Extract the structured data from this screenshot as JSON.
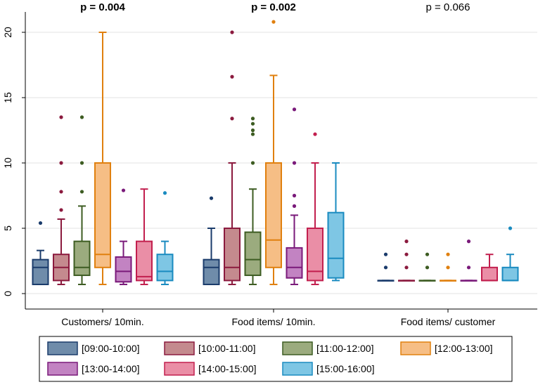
{
  "chart_data": {
    "type": "box",
    "ylim": [
      0,
      21
    ],
    "yticks": [
      0,
      5,
      10,
      15,
      20
    ],
    "ytick_labels": [
      "0",
      "5",
      "10",
      "15",
      "20"
    ],
    "grid": true,
    "groups": [
      {
        "label": "Customers/ 10min.",
        "p_label": "p = 0.004",
        "p_bold": true
      },
      {
        "label": "Food items/ 10min.",
        "p_label": "p = 0.002",
        "p_bold": true
      },
      {
        "label": "Food items/ customer",
        "p_label": "p = 0.066",
        "p_bold": false
      }
    ],
    "series": [
      {
        "name": "[09:00-10:00]",
        "fill": "#6f8caa",
        "stroke": "#1a3b6b",
        "boxes": [
          {
            "q1": 0.7,
            "median": 2.0,
            "q3": 2.6,
            "lo": 0.7,
            "hi": 3.3,
            "outliers": [
              5.4
            ]
          },
          {
            "q1": 0.7,
            "median": 2.0,
            "q3": 2.6,
            "lo": 0.7,
            "hi": 5.0,
            "outliers": [
              7.3
            ]
          },
          {
            "q1": 1.0,
            "median": 1.0,
            "q3": 1.0,
            "lo": 1.0,
            "hi": 1.0,
            "outliers": [
              2.0,
              3.0
            ]
          }
        ]
      },
      {
        "name": "[10:00-11:00]",
        "fill": "#c48a8e",
        "stroke": "#8b1a3e",
        "boxes": [
          {
            "q1": 1.0,
            "median": 2.0,
            "q3": 3.0,
            "lo": 0.7,
            "hi": 5.7,
            "outliers": [
              6.4,
              7.8,
              10.0,
              13.5
            ]
          },
          {
            "q1": 1.0,
            "median": 2.0,
            "q3": 5.0,
            "lo": 0.7,
            "hi": 10.0,
            "outliers": [
              13.4,
              16.6,
              20.0
            ]
          },
          {
            "q1": 1.0,
            "median": 1.0,
            "q3": 1.0,
            "lo": 1.0,
            "hi": 1.0,
            "outliers": [
              2.0,
              3.0,
              4.0
            ]
          }
        ]
      },
      {
        "name": "[11:00-12:00]",
        "fill": "#9bab7e",
        "stroke": "#3d5c22",
        "boxes": [
          {
            "q1": 1.4,
            "median": 2.0,
            "q3": 4.0,
            "lo": 0.7,
            "hi": 6.7,
            "outliers": [
              7.8,
              10.0,
              13.5
            ]
          },
          {
            "q1": 1.4,
            "median": 2.6,
            "q3": 4.7,
            "lo": 0.7,
            "hi": 8.0,
            "outliers": [
              10.0,
              12.2,
              12.5,
              13.0,
              13.4
            ]
          },
          {
            "q1": 1.0,
            "median": 1.0,
            "q3": 1.0,
            "lo": 1.0,
            "hi": 1.0,
            "outliers": [
              2.0,
              3.0
            ]
          }
        ]
      },
      {
        "name": "[12:00-13:00]",
        "fill": "#f6be85",
        "stroke": "#e0800f",
        "boxes": [
          {
            "q1": 2.0,
            "median": 3.0,
            "q3": 10.0,
            "lo": 0.7,
            "hi": 20.0,
            "outliers": []
          },
          {
            "q1": 2.0,
            "median": 4.1,
            "q3": 10.0,
            "lo": 0.7,
            "hi": 16.7,
            "outliers": [
              20.8
            ]
          },
          {
            "q1": 1.0,
            "median": 1.0,
            "q3": 1.0,
            "lo": 1.0,
            "hi": 1.0,
            "outliers": [
              2.0,
              3.0
            ]
          }
        ]
      },
      {
        "name": "[13:00-14:00]",
        "fill": "#c283c2",
        "stroke": "#7a1a7a",
        "boxes": [
          {
            "q1": 0.9,
            "median": 1.7,
            "q3": 2.8,
            "lo": 0.7,
            "hi": 4.0,
            "outliers": [
              7.9
            ]
          },
          {
            "q1": 1.2,
            "median": 2.0,
            "q3": 3.5,
            "lo": 0.7,
            "hi": 6.0,
            "outliers": [
              6.7,
              7.5,
              10.0,
              14.1
            ]
          },
          {
            "q1": 1.0,
            "median": 1.0,
            "q3": 1.0,
            "lo": 1.0,
            "hi": 1.0,
            "outliers": [
              2.0,
              4.0
            ]
          }
        ]
      },
      {
        "name": "[14:00-15:00]",
        "fill": "#ea8ea6",
        "stroke": "#c21f4e",
        "boxes": [
          {
            "q1": 1.0,
            "median": 1.3,
            "q3": 4.0,
            "lo": 0.7,
            "hi": 8.0,
            "outliers": []
          },
          {
            "q1": 1.0,
            "median": 1.7,
            "q3": 5.0,
            "lo": 0.7,
            "hi": 10.0,
            "outliers": [
              12.2
            ]
          },
          {
            "q1": 1.0,
            "median": 1.0,
            "q3": 2.0,
            "lo": 1.0,
            "hi": 3.0,
            "outliers": []
          }
        ]
      },
      {
        "name": "[15:00-16:00]",
        "fill": "#7ec6e4",
        "stroke": "#1a8bc0",
        "boxes": [
          {
            "q1": 1.0,
            "median": 1.7,
            "q3": 3.0,
            "lo": 0.7,
            "hi": 4.0,
            "outliers": [
              7.7
            ]
          },
          {
            "q1": 1.2,
            "median": 2.7,
            "q3": 6.2,
            "lo": 1.0,
            "hi": 10.0,
            "outliers": []
          },
          {
            "q1": 1.0,
            "median": 1.0,
            "q3": 2.0,
            "lo": 1.0,
            "hi": 3.0,
            "outliers": [
              5.0
            ]
          }
        ]
      }
    ]
  }
}
